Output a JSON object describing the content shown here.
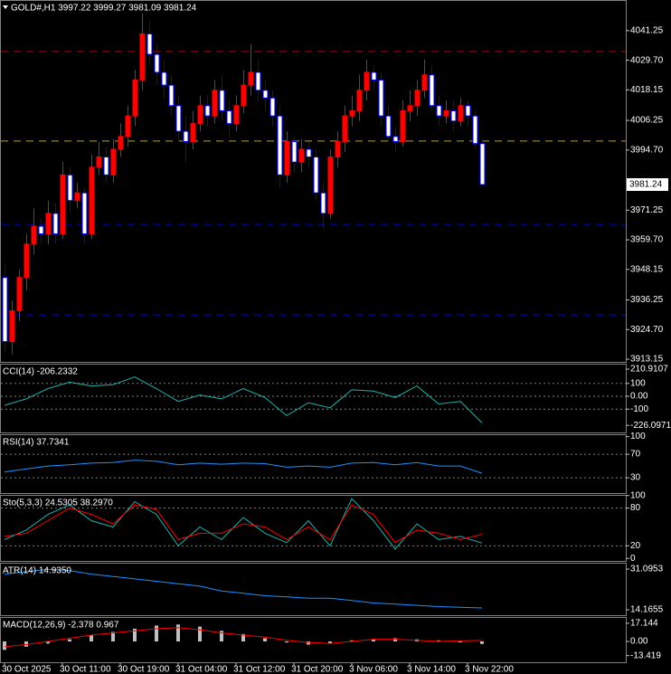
{
  "chart_data": [
    {
      "type": "candlestick",
      "title": "GOLD#,H1  3997.22 3999.27 3981.09 3981.24",
      "up_color": "#ff0000",
      "down_color": "#0000ff",
      "down_fill": "#ffffff",
      "xlim": [
        -0.625,
        85.875
      ],
      "xticks": [
        {
          "value": 0,
          "label": "30 Oct 2025"
        },
        {
          "value": 8,
          "label": "30 Oct 11:00"
        },
        {
          "value": 16,
          "label": "30 Oct 19:00"
        },
        {
          "value": 24,
          "label": "31 Oct 04:00"
        },
        {
          "value": 32,
          "label": "31 Oct 12:00"
        },
        {
          "value": 40,
          "label": "31 Oct 20:00"
        },
        {
          "value": 48,
          "label": "3 Nov 06:00"
        },
        {
          "value": 56,
          "label": "3 Nov 14:00"
        },
        {
          "value": 64,
          "label": "3 Nov 22:00"
        }
      ],
      "ylim": [
        3912.1,
        4053.2
      ],
      "yticks": [
        4041.25,
        {
          "value": 4029.7,
          "label": "4029.70"
        },
        4018.15,
        4006.25,
        {
          "value": 3994.7,
          "label": "3994.70"
        },
        3971.25,
        {
          "value": 3959.7,
          "label": "3959.70"
        },
        3948.15,
        3936.25,
        {
          "value": 3924.7,
          "label": "3924.70"
        },
        3913.15
      ],
      "current_price": 3981.24,
      "levels": [
        {
          "value": 4033.1,
          "color": "#c00000"
        },
        {
          "value": 3998.2,
          "color": "#c8a000"
        },
        {
          "value": 3965.7,
          "color": "#0000e0"
        },
        {
          "value": 3930.45,
          "color": "#0000e0"
        }
      ],
      "open": [
        3945,
        3920,
        3932,
        3945,
        3958,
        3965,
        3962,
        3970,
        3962,
        3985,
        3975,
        3978,
        3962,
        3988,
        3992,
        3985,
        3995,
        4000,
        4008,
        4022,
        4040,
        4032,
        4025,
        4020,
        4012,
        4002,
        3998,
        4005,
        4012,
        4008,
        4018,
        4010,
        4005,
        4012,
        4020,
        4025,
        4018,
        4015,
        4008,
        3985,
        3998,
        3990,
        3995,
        3992,
        3978,
        3970,
        3992,
        3998,
        4008,
        4010,
        4018,
        4025,
        4022,
        4008,
        4000,
        3998,
        4010,
        4012,
        4018,
        4024,
        4012,
        4008,
        4010,
        4006,
        4012,
        4008,
        3997.22
      ],
      "high": [
        3950,
        3936,
        3948,
        3962,
        3972,
        3968,
        3975,
        3974,
        3990,
        3988,
        3982,
        3980,
        3993,
        3998,
        3996,
        3999,
        4005,
        4012,
        4026,
        4048,
        4045,
        4036,
        4030,
        4024,
        4016,
        4008,
        4010,
        4016,
        4016,
        4022,
        4024,
        4014,
        4016,
        4026,
        4036,
        4030,
        4022,
        4018,
        4012,
        4002,
        4000,
        3999,
        3998,
        3995,
        3982,
        3995,
        4002,
        4012,
        4016,
        4024,
        4030,
        4028,
        4025,
        4012,
        4004,
        4014,
        4018,
        4022,
        4030,
        4028,
        4016,
        4014,
        4014,
        4015,
        4014,
        4010,
        3999.27
      ],
      "low": [
        3916,
        3915,
        3928,
        3940,
        3954,
        3958,
        3958,
        3958,
        3960,
        3970,
        3972,
        3958,
        3960,
        3985,
        3982,
        3982,
        3992,
        3996,
        4004,
        4018,
        4028,
        4020,
        4015,
        4008,
        3998,
        3990,
        3995,
        4002,
        4004,
        4005,
        4006,
        4000,
        4002,
        4009,
        4016,
        4014,
        4010,
        4004,
        3980,
        3982,
        3986,
        3986,
        3988,
        3975,
        3964,
        3968,
        3988,
        3994,
        4004,
        4006,
        4014,
        4018,
        4004,
        3998,
        3994,
        3996,
        4006,
        4008,
        4015,
        4010,
        4004,
        4005,
        4002,
        4004,
        4004,
        3995,
        3981.09
      ],
      "close": [
        3920,
        3932,
        3945,
        3958,
        3965,
        3962,
        3970,
        3962,
        3985,
        3975,
        3978,
        3962,
        3988,
        3992,
        3985,
        3995,
        4000,
        4008,
        4022,
        4040,
        4032,
        4025,
        4020,
        4012,
        4002,
        3998,
        4005,
        4012,
        4008,
        4018,
        4010,
        4005,
        4012,
        4020,
        4025,
        4018,
        4015,
        4008,
        3985,
        3998,
        3990,
        3995,
        3992,
        3978,
        3970,
        3992,
        3998,
        4008,
        4010,
        4018,
        4025,
        4022,
        4008,
        4000,
        3998,
        4010,
        4012,
        4018,
        4024,
        4012,
        4008,
        4010,
        4006,
        4012,
        4008,
        3997.22,
        3981.24
      ]
    },
    {
      "type": "line",
      "title": "CCI(14) -206.2332",
      "ylim": [
        -281,
        253
      ],
      "yticks": [
        210.9107,
        100,
        {
          "value": 0,
          "label": "0.00"
        },
        -100,
        -226.0971
      ],
      "levels": [
        100,
        0,
        -100
      ],
      "x": [
        0,
        3,
        6,
        9,
        12,
        15,
        18,
        21,
        24,
        27,
        30,
        33,
        36,
        39,
        42,
        45,
        48,
        51,
        54,
        57,
        60,
        63,
        66
      ],
      "series": [
        {
          "color": "#20b2aa",
          "values": [
            -70,
            -20,
            60,
            110,
            80,
            90,
            150,
            60,
            -40,
            10,
            -20,
            60,
            -10,
            -150,
            -50,
            -90,
            50,
            40,
            -10,
            80,
            -60,
            -40,
            -206.2332
          ]
        }
      ]
    },
    {
      "type": "line",
      "title": "RSI(14) 37.7341",
      "ylim": [
        4,
        104
      ],
      "yticks": [
        100,
        70,
        30
      ],
      "levels": [
        70,
        30
      ],
      "x": [
        0,
        3,
        6,
        9,
        12,
        15,
        18,
        21,
        24,
        27,
        30,
        33,
        36,
        39,
        42,
        45,
        48,
        51,
        54,
        57,
        60,
        63,
        66
      ],
      "series": [
        {
          "color": "#1e90ff",
          "values": [
            40,
            45,
            50,
            52,
            55,
            56,
            60,
            58,
            52,
            55,
            53,
            55,
            54,
            48,
            50,
            48,
            55,
            56,
            52,
            56,
            50,
            50,
            37.7341
          ]
        }
      ]
    },
    {
      "type": "line",
      "title": "Sto(5,3,3) 24.5305 38.2970",
      "ylim": [
        -4,
        101
      ],
      "yticks": [
        100,
        80,
        20,
        0
      ],
      "levels": [
        80,
        20
      ],
      "x": [
        0,
        3,
        6,
        9,
        12,
        15,
        18,
        21,
        24,
        27,
        30,
        33,
        36,
        39,
        42,
        45,
        48,
        51,
        54,
        57,
        60,
        63,
        66
      ],
      "series": [
        {
          "color": "#20b2aa",
          "values": [
            30,
            45,
            70,
            85,
            60,
            50,
            90,
            70,
            20,
            50,
            30,
            65,
            40,
            25,
            60,
            20,
            95,
            60,
            15,
            55,
            30,
            35,
            24.5305
          ]
        },
        {
          "color": "#ff0000",
          "values": [
            35,
            40,
            60,
            80,
            70,
            55,
            85,
            78,
            30,
            40,
            40,
            55,
            50,
            30,
            50,
            30,
            85,
            70,
            25,
            45,
            40,
            30,
            38.297
          ]
        }
      ]
    },
    {
      "type": "line",
      "title": "ATR(14) 14.9350",
      "ylim": [
        11.91,
        33.73
      ],
      "yticks": [
        31.0953,
        14.1655
      ],
      "x": [
        0,
        3,
        6,
        9,
        12,
        15,
        18,
        21,
        24,
        27,
        30,
        33,
        36,
        39,
        42,
        45,
        48,
        51,
        54,
        57,
        60,
        63,
        66
      ],
      "series": [
        {
          "color": "#1e90ff",
          "values": [
            29,
            30,
            31,
            30.5,
            29,
            28,
            27,
            26,
            25,
            24,
            22,
            21,
            20,
            19.5,
            19,
            19,
            18,
            17,
            16.5,
            16,
            15.5,
            15.2,
            14.935
          ]
        }
      ]
    },
    {
      "type": "line",
      "title": "MACD(12,26,9) -2.378 0.967",
      "ylim": [
        -19.7,
        23.1
      ],
      "yticks": [
        17.144,
        {
          "value": 0,
          "label": "0.00"
        },
        -13.419
      ],
      "x": [
        0,
        3,
        6,
        9,
        12,
        15,
        18,
        21,
        24,
        27,
        30,
        33,
        36,
        39,
        42,
        45,
        48,
        51,
        54,
        57,
        60,
        63,
        66
      ],
      "series": [
        {
          "color": "#c0c0c0",
          "kind": "bar",
          "values": [
            -8,
            -5,
            -2,
            2,
            6,
            9,
            12,
            15,
            16,
            14,
            10,
            7,
            3,
            -1,
            -3,
            -2,
            1,
            2,
            3,
            2,
            1,
            0,
            -2.378
          ]
        },
        {
          "color": "#ff0000",
          "values": [
            -5,
            -3,
            0,
            3,
            6,
            8,
            10,
            12,
            13,
            11,
            8,
            6,
            4,
            1,
            -1,
            -2,
            0,
            2,
            2,
            1,
            0,
            0.5,
            0.967
          ]
        }
      ]
    }
  ]
}
